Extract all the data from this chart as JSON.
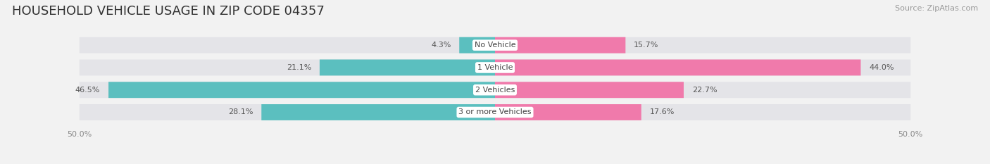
{
  "title": "HOUSEHOLD VEHICLE USAGE IN ZIP CODE 04357",
  "source": "Source: ZipAtlas.com",
  "categories": [
    "No Vehicle",
    "1 Vehicle",
    "2 Vehicles",
    "3 or more Vehicles"
  ],
  "owner_values": [
    4.3,
    21.1,
    46.5,
    28.1
  ],
  "renter_values": [
    15.7,
    44.0,
    22.7,
    17.6
  ],
  "owner_color": "#5BBFBF",
  "renter_color": "#F07AAB",
  "background_color": "#f2f2f2",
  "row_bg_color": "#e4e4e8",
  "white_gap": "#f2f2f2",
  "xlim": 50.0,
  "title_fontsize": 13,
  "source_fontsize": 8,
  "tick_fontsize": 8,
  "label_fontsize": 8,
  "cat_fontsize": 8,
  "bar_height": 0.72
}
